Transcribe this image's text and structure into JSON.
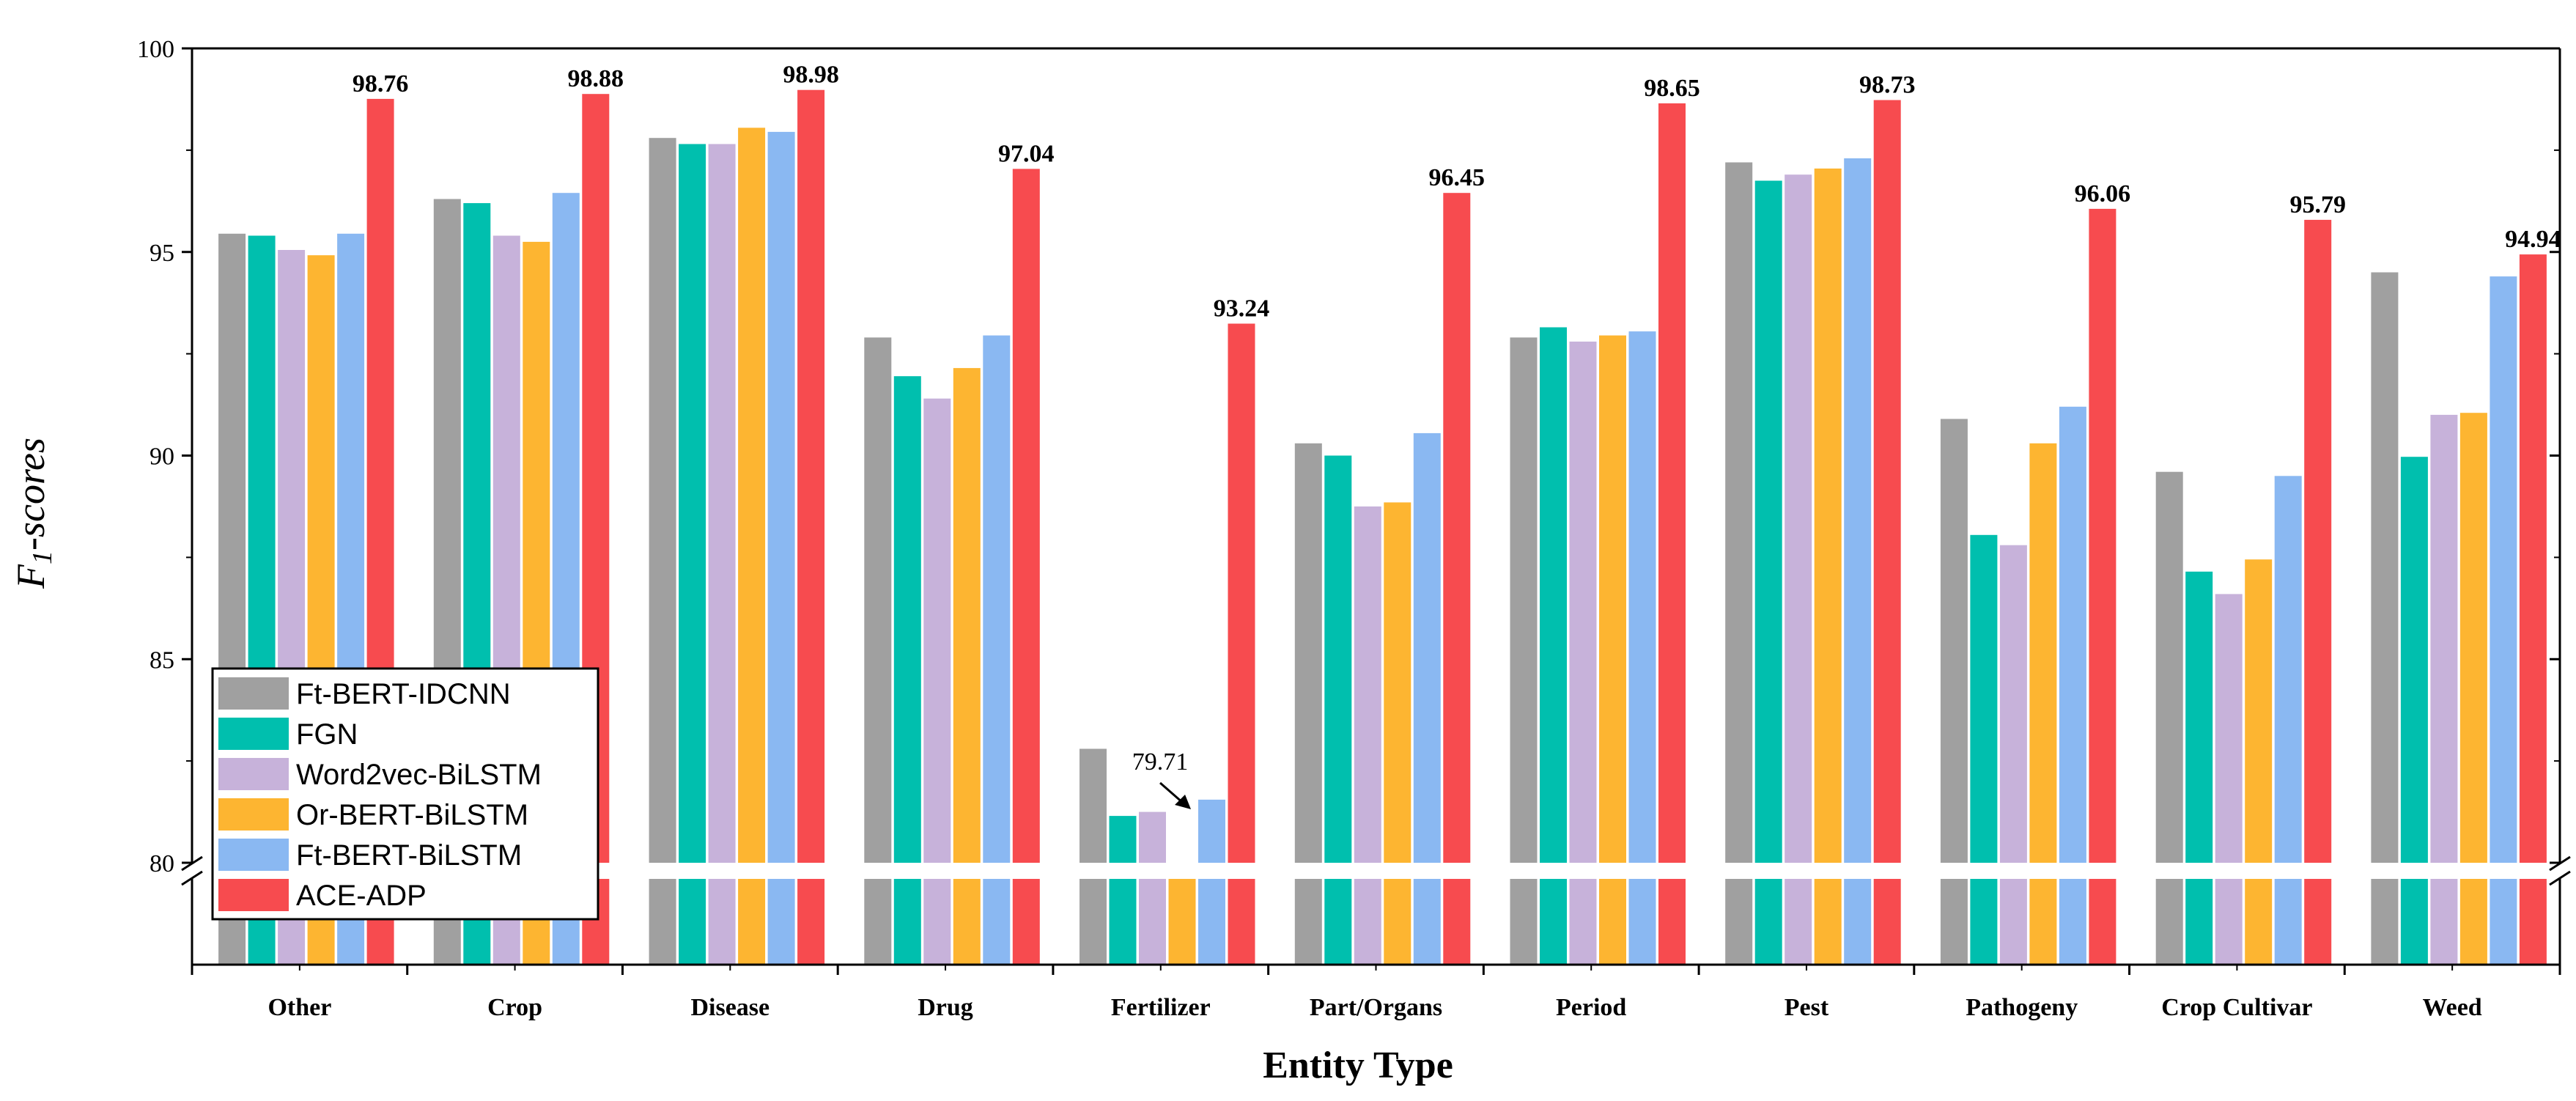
{
  "chart_data": {
    "type": "bar",
    "xlabel": "Entity Type",
    "ylabel_main": "F",
    "ylabel_sub": "1",
    "ylabel_rest": "-scores",
    "yticks": [
      80,
      85,
      90,
      95,
      100
    ],
    "ylim": [
      80,
      100
    ],
    "axis_break": true,
    "grid": false,
    "legend_position": "bottom-left",
    "categories": [
      "Other",
      "Crop",
      "Disease",
      "Drug",
      "Fertilizer",
      "Part/Organs",
      "Period",
      "Pest",
      "Pathogeny",
      "Crop Cultivar",
      "Weed"
    ],
    "series": [
      {
        "name": "Ft-BERT-IDCNN",
        "color": "#a0a0a0",
        "values": [
          95.45,
          96.3,
          97.8,
          92.9,
          82.8,
          90.3,
          92.9,
          97.2,
          90.9,
          89.6,
          94.5
        ]
      },
      {
        "name": "FGN",
        "color": "#00bfae",
        "values": [
          95.4,
          96.2,
          97.65,
          91.95,
          81.15,
          90.0,
          93.15,
          96.75,
          88.05,
          87.15,
          89.97
        ]
      },
      {
        "name": "Word2vec-BiLSTM",
        "color": "#c7b2da",
        "values": [
          95.05,
          95.4,
          97.65,
          91.4,
          81.25,
          88.75,
          92.8,
          96.9,
          87.8,
          86.6,
          91.0
        ]
      },
      {
        "name": "Or-BERT-BiLSTM",
        "color": "#fdb531",
        "values": [
          94.92,
          95.25,
          98.05,
          92.15,
          79.71,
          88.85,
          92.95,
          97.05,
          90.3,
          87.45,
          91.05
        ]
      },
      {
        "name": "Ft-BERT-BiLSTM",
        "color": "#8ab8f2",
        "values": [
          95.45,
          96.45,
          97.95,
          92.95,
          81.55,
          90.55,
          93.05,
          97.3,
          91.2,
          89.5,
          94.4
        ]
      },
      {
        "name": "ACE-ADP",
        "color": "#f74b4f",
        "values": [
          98.76,
          98.88,
          98.98,
          97.04,
          93.24,
          96.45,
          98.65,
          98.73,
          96.06,
          95.79,
          94.94
        ]
      }
    ],
    "data_labels": [
      "98.76",
      "98.88",
      "98.98",
      "97.04",
      "93.24",
      "96.45",
      "98.65",
      "98.73",
      "96.06",
      "95.79",
      "94.94"
    ],
    "annotation": {
      "text": "79.71",
      "category": "Fertilizer",
      "series": "Or-BERT-BiLSTM"
    }
  }
}
